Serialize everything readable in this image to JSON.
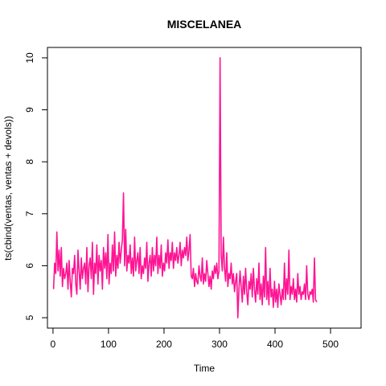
{
  "chart_data": {
    "type": "line",
    "title": "MISCELANEA",
    "xlabel": "Time",
    "ylabel": "ts(cbind(ventas, ventas + devols))",
    "xlim": [
      -10,
      555
    ],
    "ylim": [
      4.8,
      10.2
    ],
    "x_ticks": [
      0,
      100,
      200,
      300,
      400,
      500
    ],
    "y_ticks": [
      5,
      6,
      7,
      8,
      9,
      10
    ],
    "grid": false,
    "legend": "none",
    "x_start": 1,
    "x_step": 2,
    "series": [
      {
        "color": "#ff1493",
        "values": [
          5.55,
          6.05,
          5.85,
          6.65,
          5.9,
          6.3,
          5.8,
          6.35,
          5.6,
          5.95,
          5.75,
          5.85,
          6.05,
          5.55,
          6.1,
          5.7,
          5.4,
          5.95,
          5.85,
          6.2,
          5.65,
          5.45,
          6.3,
          5.9,
          5.55,
          6.15,
          5.75,
          5.95,
          6.05,
          5.65,
          6.35,
          5.5,
          6.0,
          6.15,
          5.75,
          6.45,
          5.45,
          6.05,
          5.85,
          6.4,
          5.65,
          6.2,
          5.9,
          6.1,
          5.55,
          6.35,
          5.95,
          6.25,
          5.75,
          6.6,
          5.65,
          6.05,
          5.85,
          6.4,
          5.9,
          6.65,
          5.8,
          6.2,
          5.95,
          6.45,
          6.05,
          6.3,
          6.5,
          7.4,
          6.0,
          6.7,
          5.9,
          6.2,
          6.05,
          6.4,
          5.85,
          6.15,
          5.8,
          6.55,
          5.9,
          6.1,
          6.25,
          5.85,
          6.35,
          5.75,
          6.0,
          5.85,
          6.15,
          5.95,
          6.45,
          5.7,
          6.05,
          6.2,
          5.8,
          6.35,
          5.9,
          6.2,
          6.0,
          6.55,
          5.85,
          6.2,
          5.95,
          6.4,
          5.8,
          6.05,
          5.9,
          6.25,
          6.05,
          6.5,
          5.95,
          6.25,
          6.1,
          6.45,
          5.95,
          6.25,
          6.1,
          6.35,
          6.05,
          6.2,
          6.45,
          6.0,
          6.3,
          6.15,
          6.35,
          6.2,
          6.55,
          6.1,
          6.3,
          6.6,
          5.8,
          5.75,
          5.95,
          5.6,
          5.85,
          5.7,
          5.65,
          6.0,
          5.8,
          5.7,
          6.15,
          5.65,
          5.85,
          5.7,
          6.1,
          5.85,
          5.6,
          5.8,
          5.55,
          5.9,
          5.75,
          6.0,
          5.85,
          6.05,
          5.75,
          5.9,
          10.0,
          6.2,
          5.9,
          6.55,
          5.95,
          5.7,
          6.25,
          5.6,
          5.85,
          5.75,
          6.05,
          5.65,
          5.85,
          5.5,
          5.7,
          5.85,
          5.0,
          5.55,
          5.9,
          5.6,
          5.3,
          5.8,
          5.45,
          5.95,
          5.5,
          5.25,
          5.7,
          5.55,
          5.85,
          5.4,
          5.95,
          5.55,
          5.3,
          5.75,
          5.45,
          6.05,
          5.35,
          5.65,
          5.25,
          5.8,
          5.4,
          6.35,
          5.35,
          5.7,
          5.25,
          5.95,
          5.4,
          5.55,
          5.2,
          5.7,
          5.3,
          5.55,
          5.2,
          5.65,
          5.45,
          5.25,
          5.55,
          5.35,
          6.05,
          5.35,
          5.75,
          5.45,
          6.3,
          5.35,
          5.6,
          5.45,
          5.75,
          5.35,
          5.55,
          5.3,
          5.85,
          5.45,
          5.6,
          5.35,
          5.5,
          5.45,
          5.65,
          5.35,
          6.0,
          5.45,
          5.35,
          5.5,
          5.45,
          5.55,
          5.3,
          6.15,
          5.35,
          5.3
        ]
      }
    ]
  }
}
